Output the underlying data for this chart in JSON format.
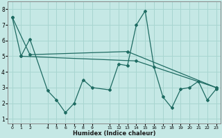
{
  "xlabel": "Humidex (Indice chaleur)",
  "bg_color": "#c5e8e5",
  "grid_color": "#a8d5d0",
  "line_color": "#1e6b62",
  "line1_x": [
    0,
    1,
    2,
    4,
    5,
    6,
    7,
    8,
    9,
    11,
    12,
    13,
    14,
    15,
    16,
    17,
    18,
    19,
    20,
    21,
    22,
    23
  ],
  "line1_y": [
    7.5,
    5.0,
    6.1,
    2.8,
    2.2,
    1.4,
    2.0,
    3.5,
    3.0,
    2.85,
    4.5,
    4.4,
    7.0,
    7.9,
    4.3,
    2.4,
    1.7,
    2.9,
    3.0,
    3.4,
    2.2,
    2.9
  ],
  "line2_x": [
    0,
    2,
    13,
    23
  ],
  "line2_y": [
    7.5,
    5.1,
    5.3,
    3.0
  ],
  "line3_x": [
    1,
    14,
    23
  ],
  "line3_y": [
    5.0,
    4.7,
    3.0
  ],
  "yticks": [
    1,
    2,
    3,
    4,
    5,
    6,
    7,
    8
  ],
  "xtick_positions": [
    0,
    1,
    2,
    4,
    5,
    6,
    7,
    8,
    9,
    11,
    12,
    13,
    14,
    15,
    16,
    17,
    18,
    19,
    20,
    21,
    22,
    23
  ],
  "xtick_labels": [
    "0",
    "1",
    "2",
    "4",
    "5",
    "6",
    "7",
    "8",
    "9",
    "11",
    "12",
    "13",
    "14",
    "15",
    "16",
    "17",
    "18",
    "19",
    "20",
    "21",
    "22",
    "23"
  ],
  "xlim": [
    -0.5,
    23.5
  ],
  "ylim": [
    0.7,
    8.5
  ]
}
